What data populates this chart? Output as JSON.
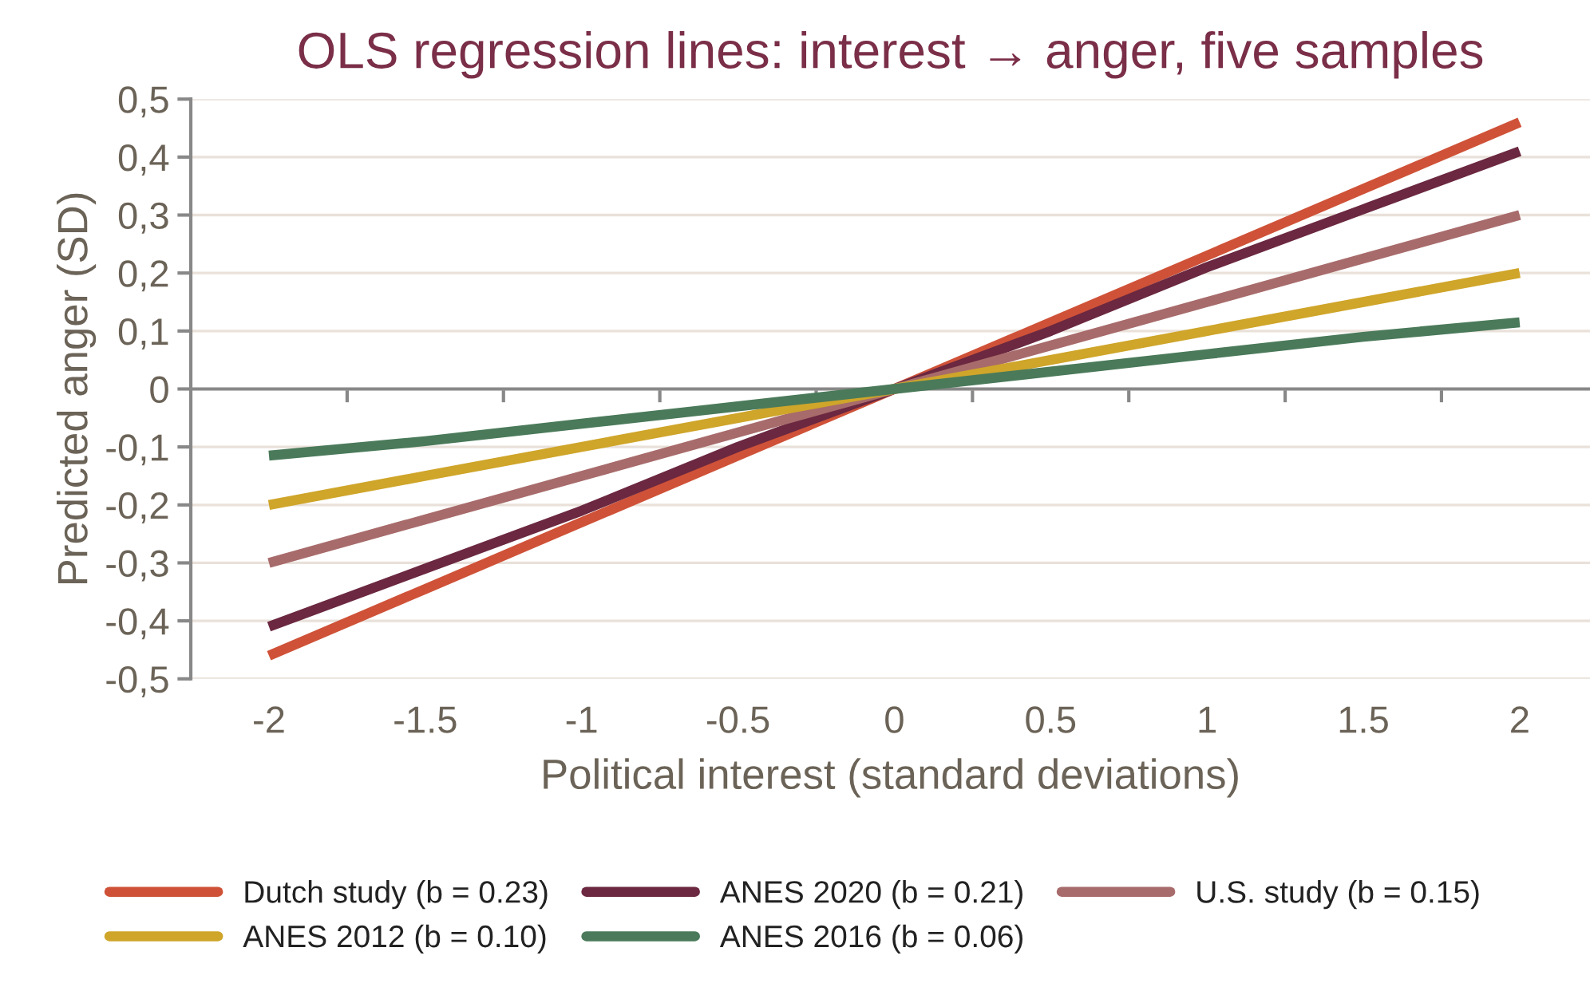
{
  "chart_data": {
    "type": "line",
    "title": "OLS regression lines: interest → anger, five samples",
    "xlabel": "Political interest (standard deviations)",
    "ylabel": "Predicted anger (SD)",
    "categories": [
      "-2",
      "-1.5",
      "-1",
      "-0.5",
      "0",
      "0.5",
      "1",
      "1.5",
      "2"
    ],
    "series": [
      {
        "name": "Dutch study (b = 0.23)",
        "color": "#cf5238",
        "values": [
          -0.46,
          -0.345,
          -0.23,
          -0.115,
          0,
          0.115,
          0.23,
          0.345,
          0.46
        ]
      },
      {
        "name": "ANES 2020 (b = 0.21)",
        "color": "#6b2840",
        "values": [
          -0.41,
          -0.31,
          -0.21,
          -0.1,
          0,
          0.1,
          0.21,
          0.31,
          0.41
        ]
      },
      {
        "name": "U.S. study (b = 0.15)",
        "color": "#a86b6b",
        "values": [
          -0.3,
          -0.225,
          -0.15,
          -0.075,
          0,
          0.075,
          0.15,
          0.225,
          0.3
        ]
      },
      {
        "name": "ANES 2012 (b = 0.10)",
        "color": "#cfa52a",
        "values": [
          -0.2,
          -0.15,
          -0.1,
          -0.05,
          0,
          0.05,
          0.1,
          0.15,
          0.2
        ]
      },
      {
        "name": "ANES 2016 (b = 0.06)",
        "color": "#4a7a5a",
        "values": [
          -0.115,
          -0.09,
          -0.06,
          -0.03,
          0,
          0.03,
          0.06,
          0.09,
          0.115
        ]
      }
    ],
    "ylim": [
      -0.5,
      0.5
    ],
    "yticks": [
      {
        "value": -0.5,
        "label": "-0,5"
      },
      {
        "value": -0.4,
        "label": "-0,4"
      },
      {
        "value": -0.3,
        "label": "-0,3"
      },
      {
        "value": -0.2,
        "label": "-0,2"
      },
      {
        "value": -0.1,
        "label": "-0,1"
      },
      0,
      {
        "value": 0.1,
        "label": "0,1"
      },
      {
        "value": 0.2,
        "label": "0,2"
      },
      {
        "value": 0.3,
        "label": "0,3"
      },
      {
        "value": 0.4,
        "label": "0,4"
      },
      {
        "value": 0.5,
        "label": "0,5"
      }
    ],
    "grid": "y",
    "legend": "bottom",
    "marker": "none",
    "line_style": "solid"
  }
}
